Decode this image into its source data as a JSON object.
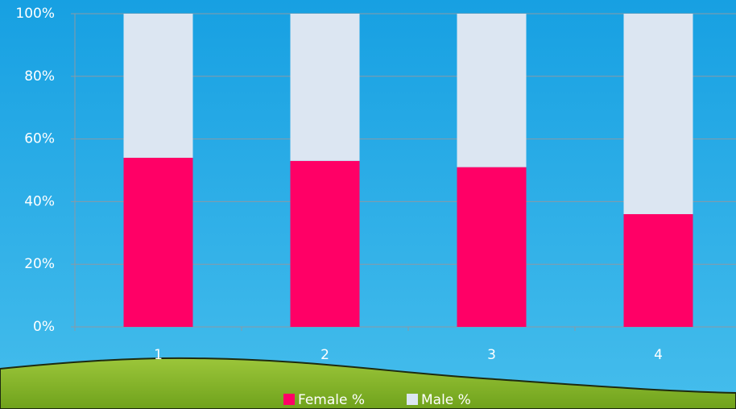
{
  "chart_data": {
    "type": "stacked_bar",
    "categories": [
      "1",
      "2",
      "3",
      "4"
    ],
    "series": [
      {
        "name": "Female %",
        "color": "#ff0066",
        "values": [
          54,
          53,
          51,
          36
        ]
      },
      {
        "name": "Male %",
        "color": "#dce6f2",
        "values": [
          46,
          47,
          49,
          64
        ]
      }
    ],
    "ylim": [
      0,
      100
    ],
    "yticks": [
      {
        "value": 0,
        "label": "0%"
      },
      {
        "value": 20,
        "label": "20%"
      },
      {
        "value": 40,
        "label": "40%"
      },
      {
        "value": 60,
        "label": "60%"
      },
      {
        "value": 80,
        "label": "80%"
      },
      {
        "value": 100,
        "label": "100%"
      }
    ],
    "grid": true,
    "legend": "bottom"
  }
}
